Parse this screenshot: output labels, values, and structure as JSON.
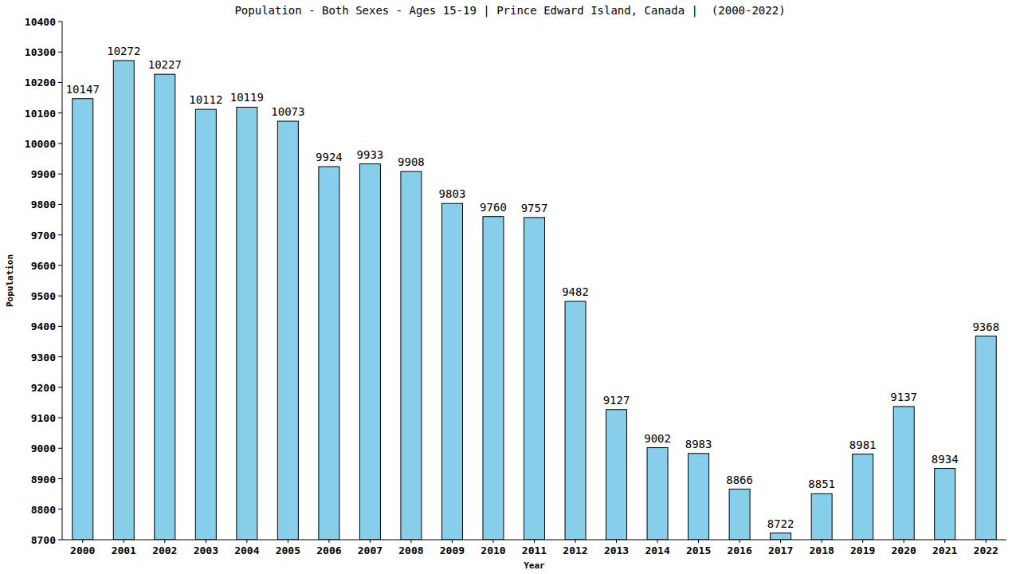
{
  "chart_data": {
    "type": "bar",
    "title": "Population - Both Sexes - Ages 15-19 | Prince Edward Island, Canada |  (2000-2022)",
    "x_label": "Year",
    "y_label": "Population",
    "categories": [
      "2000",
      "2001",
      "2002",
      "2003",
      "2004",
      "2005",
      "2006",
      "2007",
      "2008",
      "2009",
      "2010",
      "2011",
      "2012",
      "2013",
      "2014",
      "2015",
      "2016",
      "2017",
      "2018",
      "2019",
      "2020",
      "2021",
      "2022"
    ],
    "values": [
      10147,
      10272,
      10227,
      10112,
      10119,
      10073,
      9924,
      9933,
      9908,
      9803,
      9760,
      9757,
      9482,
      9127,
      9002,
      8983,
      8866,
      8722,
      8851,
      8981,
      9137,
      8934,
      9368
    ],
    "color": "#87ceeb",
    "ylim": [
      8700,
      10400
    ],
    "yticks": [
      8700,
      8800,
      8900,
      9000,
      9100,
      9200,
      9300,
      9400,
      9500,
      9600,
      9700,
      9800,
      9900,
      10000,
      10100,
      10200,
      10300,
      10400
    ],
    "grid": false,
    "data_labels": true
  }
}
